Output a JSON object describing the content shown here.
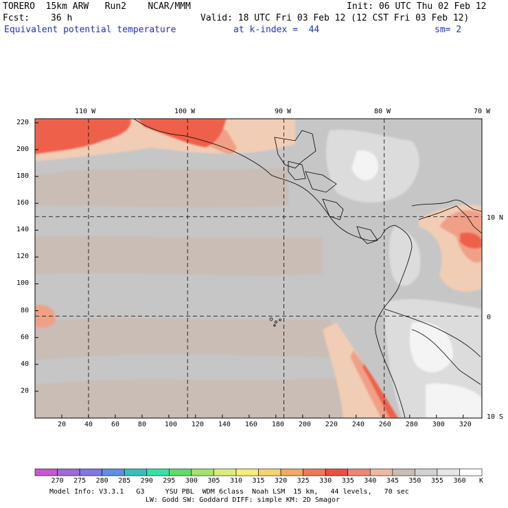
{
  "header": {
    "model": "TORERO  15km ARW   Run2    NCAR/MMM",
    "init": "Init: 06 UTC Thu 02 Feb 12",
    "fcst_label": "Fcst:",
    "fcst_hours": "36 h",
    "valid": "Valid: 18 UTC Fri 03 Feb 12 (12 CST Fri 03 Feb 12)",
    "field": "Equivalent potential temperature",
    "level": "at k-index =  44",
    "smoothing": "sm= 2"
  },
  "map": {
    "top_lon_labels": [
      "110 W",
      "100 W",
      "90 W",
      "80 W",
      "70 W"
    ],
    "right_lat_labels": [
      "10 N",
      "0",
      "10 S"
    ],
    "y_ticks": [
      "220",
      "200",
      "180",
      "160",
      "140",
      "120",
      "100",
      "80",
      "60",
      "40",
      "20"
    ],
    "x_ticks": [
      "20",
      "40",
      "60",
      "80",
      "100",
      "120",
      "140",
      "160",
      "180",
      "200",
      "220",
      "240",
      "260",
      "280",
      "300",
      "320"
    ],
    "grid_x_index": [
      40,
      114,
      186,
      261
    ],
    "grid_y_index": [
      150,
      76
    ],
    "x_range": [
      0,
      334
    ],
    "y_range": [
      0,
      223
    ],
    "colors": {
      "grey_warm": "#c9bdb6",
      "grey_cool": "#c6c6c6",
      "peach": "#f2cdb5",
      "salmon": "#f0a087",
      "red": "#ee6049",
      "light_grey": "#dcdcdc",
      "white": "#f4f4f4"
    }
  },
  "colorbar": {
    "labels": [
      "270",
      "275",
      "280",
      "285",
      "290",
      "295",
      "300",
      "305",
      "310",
      "315",
      "320",
      "325",
      "330",
      "335",
      "340",
      "345",
      "350",
      "355",
      "360"
    ],
    "unit": "K",
    "colors": [
      "#c855d1",
      "#9e6ad8",
      "#7f78e6",
      "#5d8fe6",
      "#36c0c0",
      "#33e3a3",
      "#5fdc6a",
      "#a4e26a",
      "#d9ec7c",
      "#f5ee78",
      "#f6d371",
      "#f3a95f",
      "#f07a57",
      "#ee4e3f",
      "#ef8770",
      "#efb8a0",
      "#c9bdb6",
      "#d2d2d2",
      "#e6e6e6",
      "#ffffff"
    ]
  },
  "footer": {
    "line1": "Model Info: V3.3.1   G3     YSU PBL  WDM 6class  Noah LSM  15 km,   44 levels,   70 sec",
    "line2": "LW: Godd SW: Goddard DIFF: simple KM: 2D Smagor"
  }
}
